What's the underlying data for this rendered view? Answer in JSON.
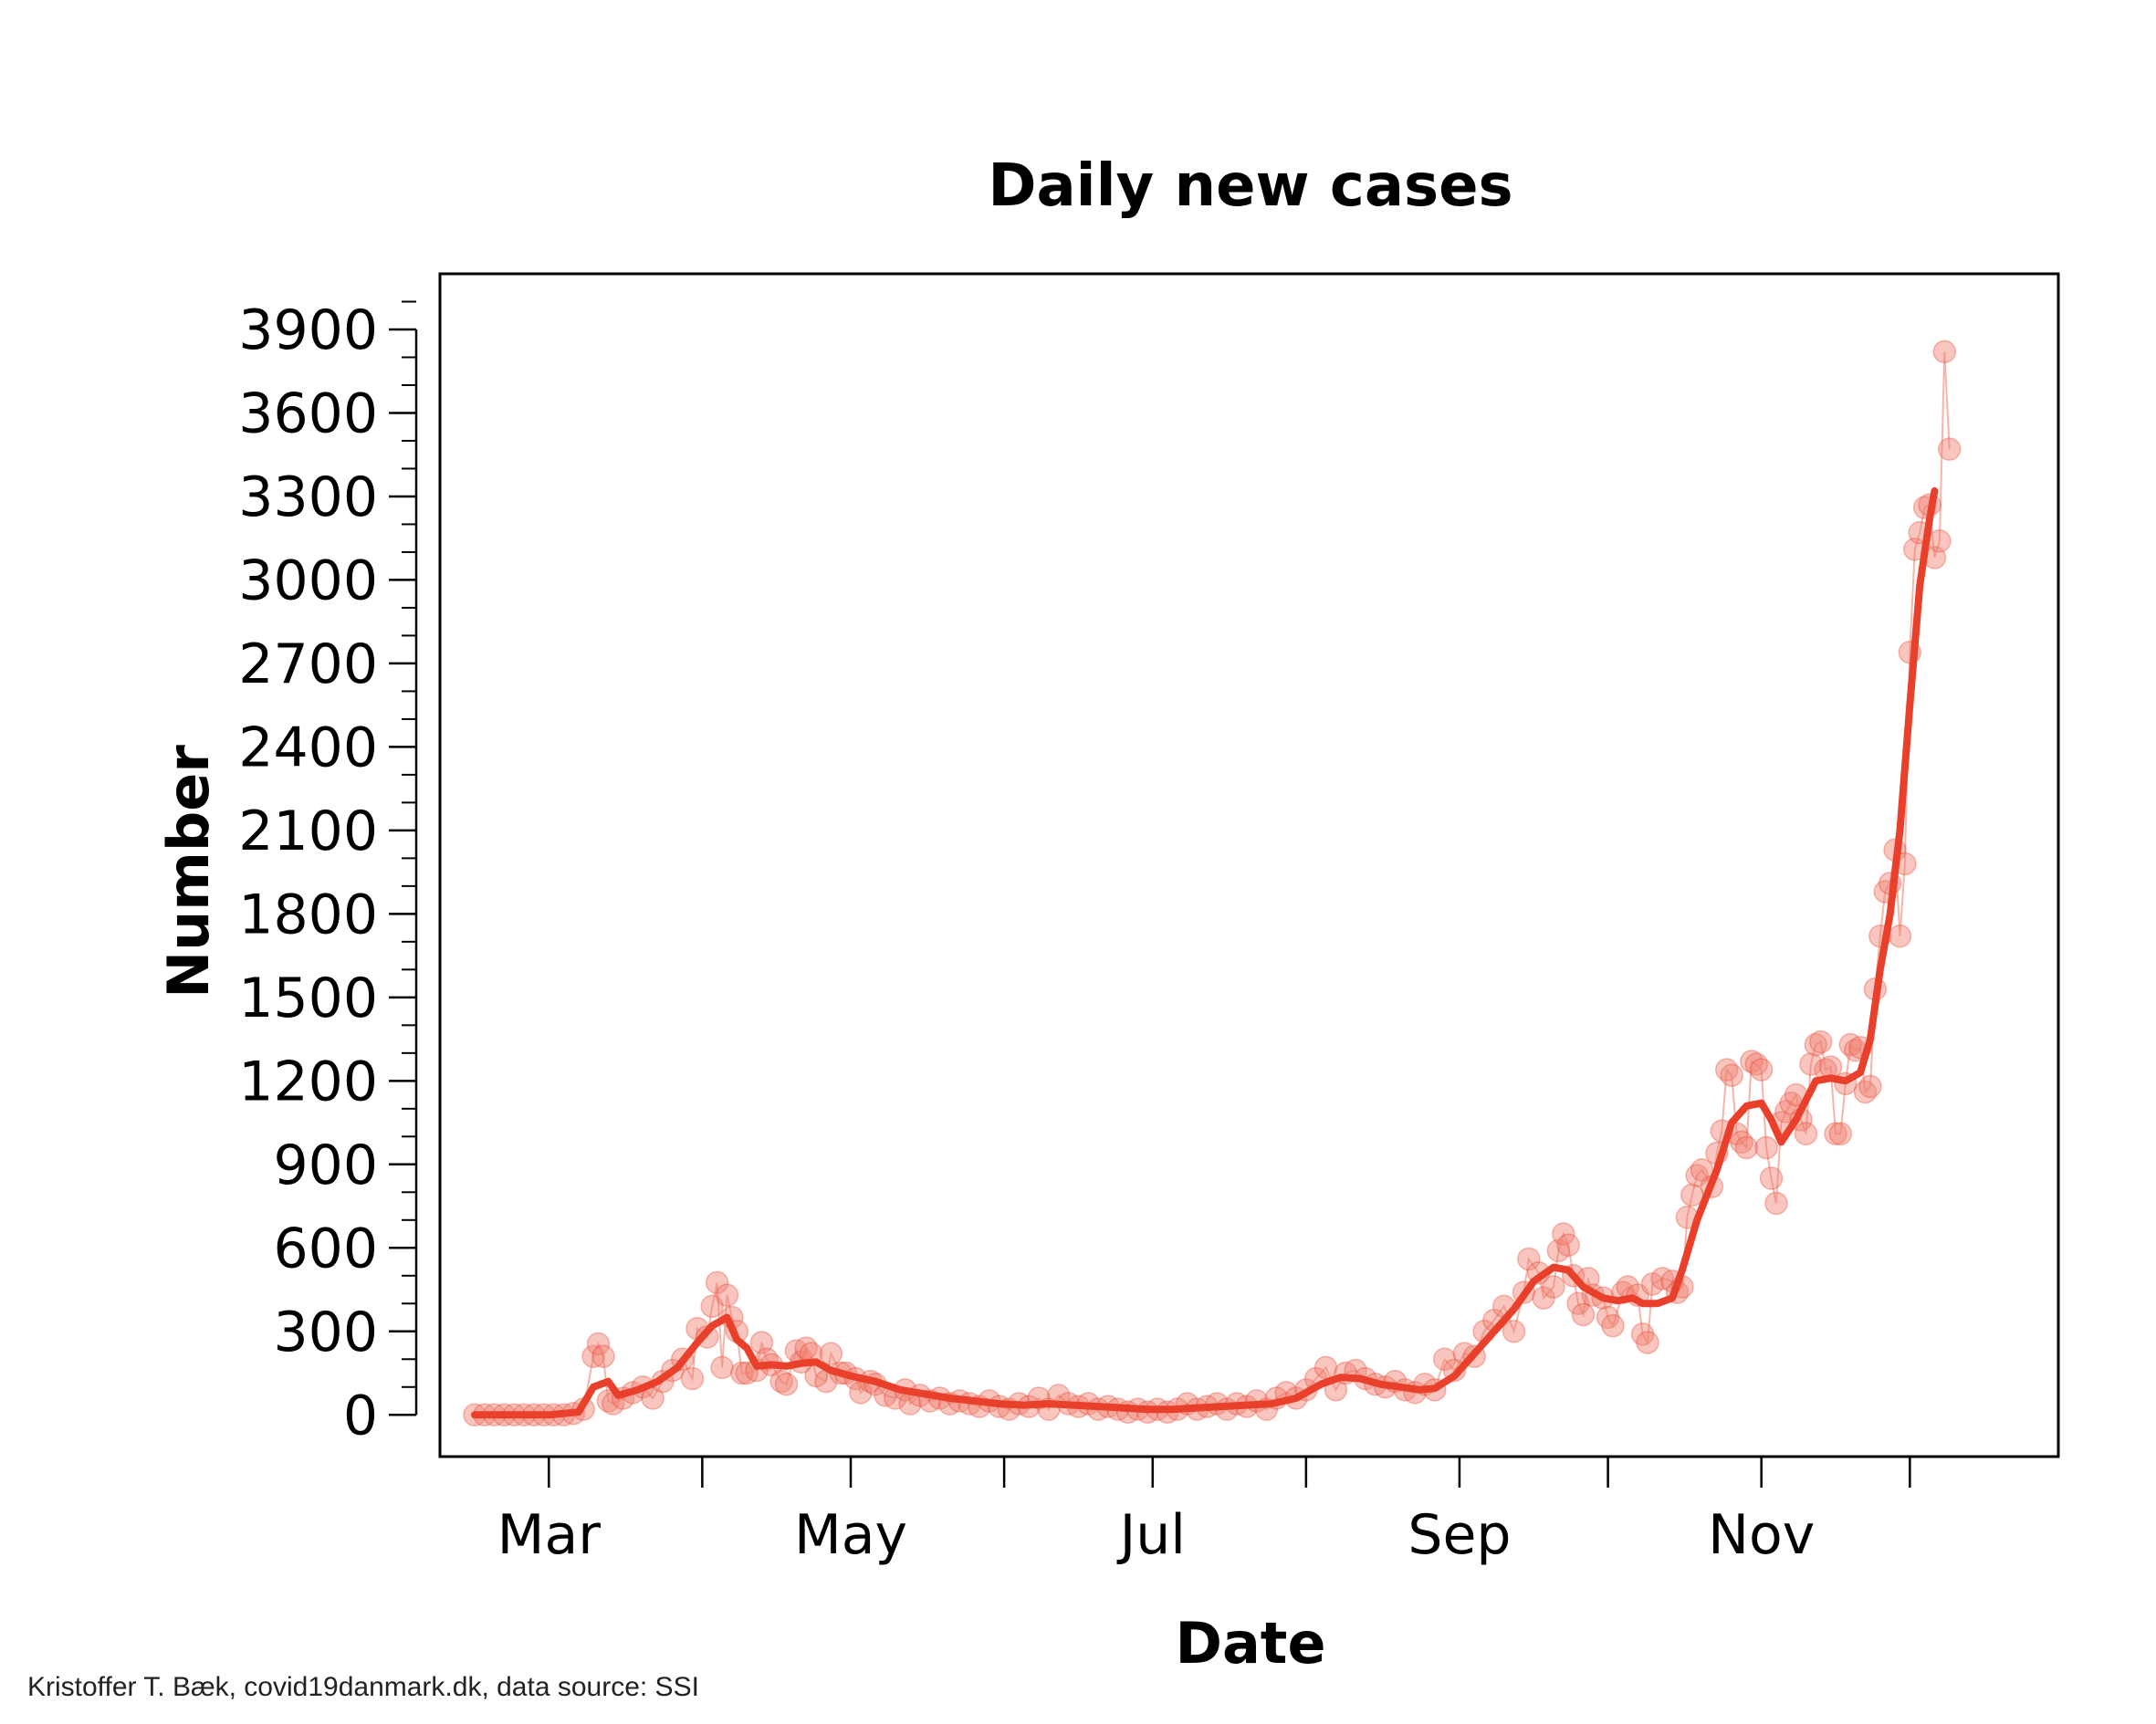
{
  "credit": "Kristoffer T. Bæk, covid19danmark.dk, data source: SSI",
  "colors": {
    "line": "#e8402a",
    "points": "#f08070",
    "points_stroke": "#e8402a",
    "raw_line": "#f5b5aa",
    "frame": "#000000"
  },
  "chart_data": {
    "type": "line",
    "title": "Daily new cases",
    "xlabel": "Date",
    "ylabel": "Number",
    "ylim": [
      -150,
      4100
    ],
    "yticks": [
      0,
      300,
      600,
      900,
      1200,
      1500,
      1800,
      2100,
      2400,
      2700,
      3000,
      3300,
      3600,
      3900
    ],
    "yminor_step": 100,
    "xlim": [
      "2020-02-08",
      "2020-12-31"
    ],
    "x_major_ticks": [
      {
        "date": "2020-03-01",
        "label": "Mar"
      },
      {
        "date": "2020-04-01",
        "label": ""
      },
      {
        "date": "2020-05-01",
        "label": "May"
      },
      {
        "date": "2020-06-01",
        "label": ""
      },
      {
        "date": "2020-07-01",
        "label": "Jul"
      },
      {
        "date": "2020-08-01",
        "label": ""
      },
      {
        "date": "2020-09-01",
        "label": "Sep"
      },
      {
        "date": "2020-10-01",
        "label": ""
      },
      {
        "date": "2020-11-01",
        "label": "Nov"
      },
      {
        "date": "2020-12-01",
        "label": ""
      }
    ],
    "daily_points": [
      [
        "2020-02-15",
        0
      ],
      [
        "2020-02-17",
        0
      ],
      [
        "2020-02-19",
        0
      ],
      [
        "2020-02-21",
        0
      ],
      [
        "2020-02-23",
        0
      ],
      [
        "2020-02-25",
        0
      ],
      [
        "2020-02-27",
        0
      ],
      [
        "2020-02-29",
        0
      ],
      [
        "2020-03-02",
        0
      ],
      [
        "2020-03-04",
        0
      ],
      [
        "2020-03-06",
        5
      ],
      [
        "2020-03-08",
        20
      ],
      [
        "2020-03-10",
        210
      ],
      [
        "2020-03-11",
        255
      ],
      [
        "2020-03-12",
        210
      ],
      [
        "2020-03-13",
        50
      ],
      [
        "2020-03-14",
        40
      ],
      [
        "2020-03-16",
        60
      ],
      [
        "2020-03-18",
        80
      ],
      [
        "2020-03-20",
        100
      ],
      [
        "2020-03-22",
        60
      ],
      [
        "2020-03-24",
        120
      ],
      [
        "2020-03-26",
        160
      ],
      [
        "2020-03-28",
        200
      ],
      [
        "2020-03-30",
        130
      ],
      [
        "2020-03-31",
        310
      ],
      [
        "2020-04-02",
        280
      ],
      [
        "2020-04-03",
        390
      ],
      [
        "2020-04-04",
        475
      ],
      [
        "2020-04-05",
        170
      ],
      [
        "2020-04-06",
        430
      ],
      [
        "2020-04-07",
        350
      ],
      [
        "2020-04-08",
        300
      ],
      [
        "2020-04-09",
        150
      ],
      [
        "2020-04-10",
        150
      ],
      [
        "2020-04-12",
        160
      ],
      [
        "2020-04-13",
        260
      ],
      [
        "2020-04-14",
        200
      ],
      [
        "2020-04-15",
        180
      ],
      [
        "2020-04-17",
        120
      ],
      [
        "2020-04-18",
        110
      ],
      [
        "2020-04-20",
        230
      ],
      [
        "2020-04-21",
        190
      ],
      [
        "2020-04-22",
        240
      ],
      [
        "2020-04-23",
        220
      ],
      [
        "2020-04-24",
        140
      ],
      [
        "2020-04-26",
        120
      ],
      [
        "2020-04-27",
        220
      ],
      [
        "2020-04-29",
        150
      ],
      [
        "2020-04-30",
        150
      ],
      [
        "2020-05-02",
        130
      ],
      [
        "2020-05-03",
        80
      ],
      [
        "2020-05-05",
        120
      ],
      [
        "2020-05-06",
        110
      ],
      [
        "2020-05-08",
        70
      ],
      [
        "2020-05-10",
        60
      ],
      [
        "2020-05-12",
        90
      ],
      [
        "2020-05-13",
        40
      ],
      [
        "2020-05-15",
        70
      ],
      [
        "2020-05-17",
        50
      ],
      [
        "2020-05-19",
        60
      ],
      [
        "2020-05-21",
        40
      ],
      [
        "2020-05-23",
        50
      ],
      [
        "2020-05-25",
        40
      ],
      [
        "2020-05-27",
        30
      ],
      [
        "2020-05-29",
        50
      ],
      [
        "2020-05-31",
        30
      ],
      [
        "2020-06-02",
        20
      ],
      [
        "2020-06-04",
        40
      ],
      [
        "2020-06-06",
        30
      ],
      [
        "2020-06-08",
        60
      ],
      [
        "2020-06-10",
        20
      ],
      [
        "2020-06-12",
        70
      ],
      [
        "2020-06-14",
        40
      ],
      [
        "2020-06-16",
        30
      ],
      [
        "2020-06-18",
        40
      ],
      [
        "2020-06-20",
        20
      ],
      [
        "2020-06-22",
        30
      ],
      [
        "2020-06-24",
        20
      ],
      [
        "2020-06-26",
        10
      ],
      [
        "2020-06-28",
        20
      ],
      [
        "2020-06-30",
        10
      ],
      [
        "2020-07-02",
        20
      ],
      [
        "2020-07-04",
        10
      ],
      [
        "2020-07-06",
        20
      ],
      [
        "2020-07-08",
        40
      ],
      [
        "2020-07-10",
        20
      ],
      [
        "2020-07-12",
        30
      ],
      [
        "2020-07-14",
        40
      ],
      [
        "2020-07-16",
        20
      ],
      [
        "2020-07-18",
        40
      ],
      [
        "2020-07-20",
        30
      ],
      [
        "2020-07-22",
        50
      ],
      [
        "2020-07-24",
        20
      ],
      [
        "2020-07-26",
        60
      ],
      [
        "2020-07-28",
        80
      ],
      [
        "2020-07-30",
        60
      ],
      [
        "2020-08-01",
        90
      ],
      [
        "2020-08-03",
        130
      ],
      [
        "2020-08-05",
        170
      ],
      [
        "2020-08-07",
        90
      ],
      [
        "2020-08-09",
        150
      ],
      [
        "2020-08-11",
        160
      ],
      [
        "2020-08-13",
        130
      ],
      [
        "2020-08-15",
        110
      ],
      [
        "2020-08-17",
        100
      ],
      [
        "2020-08-19",
        120
      ],
      [
        "2020-08-21",
        90
      ],
      [
        "2020-08-23",
        80
      ],
      [
        "2020-08-25",
        110
      ],
      [
        "2020-08-27",
        90
      ],
      [
        "2020-08-29",
        200
      ],
      [
        "2020-08-31",
        160
      ],
      [
        "2020-09-02",
        220
      ],
      [
        "2020-09-04",
        210
      ],
      [
        "2020-09-06",
        300
      ],
      [
        "2020-09-08",
        340
      ],
      [
        "2020-09-10",
        390
      ],
      [
        "2020-09-12",
        300
      ],
      [
        "2020-09-14",
        440
      ],
      [
        "2020-09-15",
        560
      ],
      [
        "2020-09-17",
        510
      ],
      [
        "2020-09-18",
        420
      ],
      [
        "2020-09-20",
        460
      ],
      [
        "2020-09-21",
        590
      ],
      [
        "2020-09-22",
        650
      ],
      [
        "2020-09-23",
        610
      ],
      [
        "2020-09-24",
        500
      ],
      [
        "2020-09-25",
        400
      ],
      [
        "2020-09-26",
        360
      ],
      [
        "2020-09-27",
        490
      ],
      [
        "2020-09-28",
        430
      ],
      [
        "2020-09-30",
        420
      ],
      [
        "2020-10-01",
        350
      ],
      [
        "2020-10-02",
        320
      ],
      [
        "2020-10-04",
        440
      ],
      [
        "2020-10-05",
        460
      ],
      [
        "2020-10-07",
        430
      ],
      [
        "2020-10-08",
        290
      ],
      [
        "2020-10-09",
        260
      ],
      [
        "2020-10-10",
        470
      ],
      [
        "2020-10-12",
        490
      ],
      [
        "2020-10-14",
        480
      ],
      [
        "2020-10-15",
        440
      ],
      [
        "2020-10-16",
        460
      ],
      [
        "2020-10-17",
        710
      ],
      [
        "2020-10-18",
        790
      ],
      [
        "2020-10-19",
        860
      ],
      [
        "2020-10-20",
        880
      ],
      [
        "2020-10-22",
        820
      ],
      [
        "2020-10-23",
        940
      ],
      [
        "2020-10-24",
        1020
      ],
      [
        "2020-10-25",
        1240
      ],
      [
        "2020-10-26",
        1220
      ],
      [
        "2020-10-27",
        1010
      ],
      [
        "2020-10-28",
        980
      ],
      [
        "2020-10-29",
        960
      ],
      [
        "2020-10-30",
        1270
      ],
      [
        "2020-10-31",
        1260
      ],
      [
        "2020-11-01",
        1240
      ],
      [
        "2020-11-02",
        960
      ],
      [
        "2020-11-03",
        850
      ],
      [
        "2020-11-04",
        760
      ],
      [
        "2020-11-05",
        1050
      ],
      [
        "2020-11-06",
        1090
      ],
      [
        "2020-11-07",
        1120
      ],
      [
        "2020-11-08",
        1150
      ],
      [
        "2020-11-09",
        1060
      ],
      [
        "2020-11-10",
        1010
      ],
      [
        "2020-11-11",
        1260
      ],
      [
        "2020-11-12",
        1330
      ],
      [
        "2020-11-13",
        1340
      ],
      [
        "2020-11-14",
        1240
      ],
      [
        "2020-11-15",
        1250
      ],
      [
        "2020-11-16",
        1010
      ],
      [
        "2020-11-17",
        1010
      ],
      [
        "2020-11-18",
        1190
      ],
      [
        "2020-11-19",
        1330
      ],
      [
        "2020-11-20",
        1310
      ],
      [
        "2020-11-21",
        1320
      ],
      [
        "2020-11-22",
        1160
      ],
      [
        "2020-11-23",
        1180
      ],
      [
        "2020-11-24",
        1530
      ],
      [
        "2020-11-25",
        1720
      ],
      [
        "2020-11-26",
        1880
      ],
      [
        "2020-11-27",
        1910
      ],
      [
        "2020-11-28",
        2030
      ],
      [
        "2020-11-29",
        1720
      ],
      [
        "2020-11-30",
        1980
      ],
      [
        "2020-12-01",
        2740
      ],
      [
        "2020-12-02",
        3110
      ],
      [
        "2020-12-03",
        3170
      ],
      [
        "2020-12-04",
        3260
      ],
      [
        "2020-12-05",
        3270
      ],
      [
        "2020-12-06",
        3080
      ],
      [
        "2020-12-07",
        3140
      ],
      [
        "2020-12-08",
        3820
      ],
      [
        "2020-12-09",
        3470
      ]
    ],
    "smoothed": [
      [
        "2020-02-15",
        0
      ],
      [
        "2020-03-01",
        0
      ],
      [
        "2020-03-07",
        10
      ],
      [
        "2020-03-10",
        100
      ],
      [
        "2020-03-13",
        120
      ],
      [
        "2020-03-15",
        70
      ],
      [
        "2020-03-19",
        90
      ],
      [
        "2020-03-23",
        120
      ],
      [
        "2020-03-27",
        170
      ],
      [
        "2020-03-31",
        260
      ],
      [
        "2020-04-03",
        320
      ],
      [
        "2020-04-06",
        350
      ],
      [
        "2020-04-08",
        270
      ],
      [
        "2020-04-10",
        240
      ],
      [
        "2020-04-12",
        175
      ],
      [
        "2020-04-15",
        180
      ],
      [
        "2020-04-18",
        175
      ],
      [
        "2020-04-21",
        185
      ],
      [
        "2020-04-24",
        190
      ],
      [
        "2020-04-27",
        160
      ],
      [
        "2020-05-01",
        140
      ],
      [
        "2020-05-06",
        120
      ],
      [
        "2020-05-11",
        90
      ],
      [
        "2020-05-16",
        75
      ],
      [
        "2020-05-21",
        60
      ],
      [
        "2020-05-26",
        50
      ],
      [
        "2020-05-31",
        40
      ],
      [
        "2020-06-05",
        35
      ],
      [
        "2020-06-10",
        40
      ],
      [
        "2020-06-15",
        35
      ],
      [
        "2020-06-20",
        30
      ],
      [
        "2020-06-25",
        25
      ],
      [
        "2020-06-30",
        20
      ],
      [
        "2020-07-05",
        20
      ],
      [
        "2020-07-10",
        25
      ],
      [
        "2020-07-15",
        30
      ],
      [
        "2020-07-20",
        35
      ],
      [
        "2020-07-25",
        40
      ],
      [
        "2020-07-30",
        60
      ],
      [
        "2020-08-04",
        110
      ],
      [
        "2020-08-08",
        135
      ],
      [
        "2020-08-12",
        130
      ],
      [
        "2020-08-16",
        110
      ],
      [
        "2020-08-20",
        100
      ],
      [
        "2020-08-24",
        90
      ],
      [
        "2020-08-27",
        95
      ],
      [
        "2020-08-31",
        140
      ],
      [
        "2020-09-04",
        220
      ],
      [
        "2020-09-08",
        300
      ],
      [
        "2020-09-12",
        380
      ],
      [
        "2020-09-16",
        480
      ],
      [
        "2020-09-20",
        530
      ],
      [
        "2020-09-23",
        520
      ],
      [
        "2020-09-26",
        460
      ],
      [
        "2020-09-30",
        420
      ],
      [
        "2020-10-03",
        410
      ],
      [
        "2020-10-06",
        420
      ],
      [
        "2020-10-08",
        400
      ],
      [
        "2020-10-11",
        400
      ],
      [
        "2020-10-14",
        420
      ],
      [
        "2020-10-16",
        520
      ],
      [
        "2020-10-19",
        700
      ],
      [
        "2020-10-23",
        880
      ],
      [
        "2020-10-26",
        1050
      ],
      [
        "2020-10-29",
        1110
      ],
      [
        "2020-11-01",
        1120
      ],
      [
        "2020-11-03",
        1060
      ],
      [
        "2020-11-05",
        980
      ],
      [
        "2020-11-08",
        1060
      ],
      [
        "2020-11-12",
        1200
      ],
      [
        "2020-11-15",
        1210
      ],
      [
        "2020-11-18",
        1200
      ],
      [
        "2020-11-21",
        1230
      ],
      [
        "2020-11-23",
        1350
      ],
      [
        "2020-11-25",
        1600
      ],
      [
        "2020-11-27",
        1800
      ],
      [
        "2020-11-29",
        2100
      ],
      [
        "2020-12-01",
        2550
      ],
      [
        "2020-12-03",
        2980
      ],
      [
        "2020-12-05",
        3220
      ],
      [
        "2020-12-06",
        3320
      ]
    ]
  }
}
